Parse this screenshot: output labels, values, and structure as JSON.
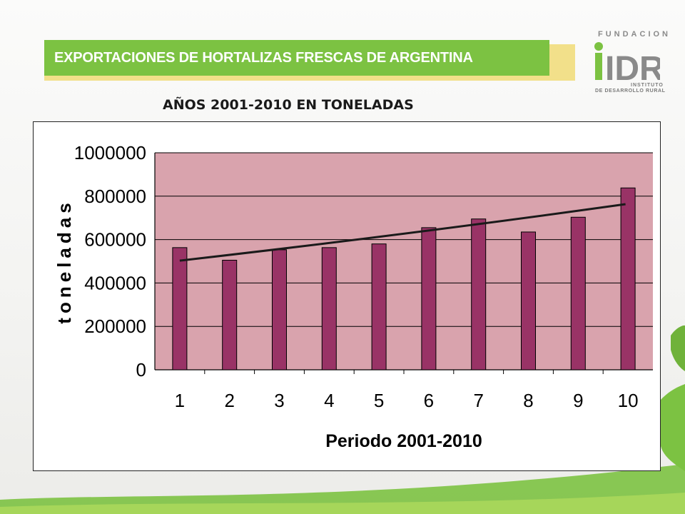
{
  "slide": {
    "title": "EXPORTACIONES DE HORTALIZAS FRESCAS DE ARGENTINA",
    "subtitle": "AÑOS 2001-2010 EN TONELADAS"
  },
  "logo": {
    "top_text": "FUNDACION",
    "mark": "IDR",
    "sub_line1": "INSTITUTO",
    "sub_line2": "DE DESARROLLO RURAL"
  },
  "colors": {
    "title_bar": "#7cc242",
    "title_accent": "#f2e08a",
    "plot_background": "#d9a3ad",
    "bar_fill": "#993366",
    "trendline": "#1a1a1a"
  },
  "chart_data": {
    "type": "bar",
    "title": "",
    "xlabel": "Periodo 2001-2010",
    "ylabel": "toneladas",
    "categories": [
      "1",
      "2",
      "3",
      "4",
      "5",
      "6",
      "7",
      "8",
      "9",
      "10"
    ],
    "values": [
      563000,
      505000,
      553000,
      563000,
      580000,
      655000,
      695000,
      635000,
      703000,
      838000
    ],
    "trendline": {
      "type": "linear",
      "start": 503000,
      "end": 763000
    },
    "ylim": [
      0,
      1000000
    ],
    "yticks": [
      "0",
      "200000",
      "400000",
      "600000",
      "800000",
      "1000000"
    ],
    "grid": true,
    "legend": "none"
  }
}
